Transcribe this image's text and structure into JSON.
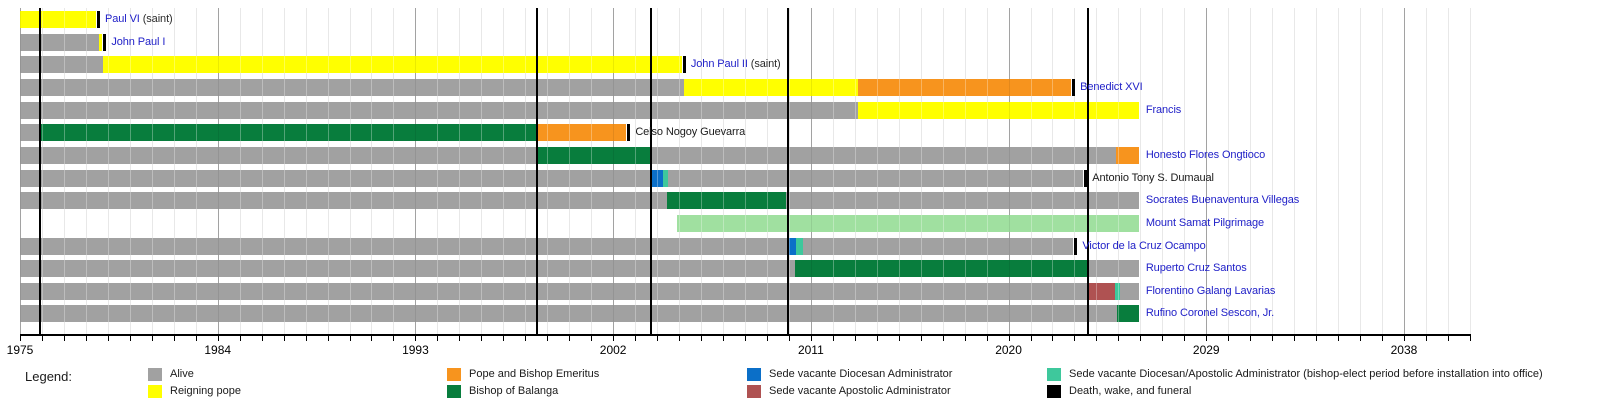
{
  "chart_data": {
    "type": "timeline",
    "x_axis": {
      "start_year": 1975,
      "end_year": 2041,
      "tick_interval_years": 1,
      "labeled_years": [
        1975,
        1984,
        1993,
        2002,
        2011,
        2020,
        2029,
        2038
      ]
    },
    "statuses": {
      "alive": {
        "label": "Alive",
        "color": "#a1a1a1"
      },
      "reigning_pope": {
        "label": "Reigning pope",
        "color": "#ffff00"
      },
      "emeritus": {
        "label": "Pope and Bishop Emeritus",
        "color": "#f7941e"
      },
      "bishop_of_balanga": {
        "label": "Bishop of Balanga",
        "color": "#087d3d"
      },
      "sede_vacante_diocesan": {
        "label": "Sede vacante Diocesan Administrator",
        "color": "#0b6fc8"
      },
      "sede_vacante_apostolic": {
        "label": "Sede vacante Apostolic Administrator",
        "color": "#af5252"
      },
      "bishop_elect": {
        "label": "Sede vacante Diocesan/Apostolic Administrator (bishop-elect period before installation into office)",
        "color": "#3ec89c"
      },
      "death": {
        "label": "Death, wake, and funeral",
        "color": "#000000"
      },
      "pilgrimage": {
        "label": "Mount Samat Pilgrimage",
        "color": "#a0e0a0"
      }
    },
    "event_line_years": [
      1975.87,
      1998.5,
      2003.68,
      2009.92,
      2023.58
    ],
    "rows": [
      {
        "name": "Paul VI",
        "suffix": " (saint)",
        "link": true,
        "death_year": 1978.46,
        "segments": [
          {
            "status": "reigning_pope",
            "from": 1975,
            "to": 1978.46
          }
        ]
      },
      {
        "name": "John Paul I",
        "suffix": "",
        "link": true,
        "death_year": 1978.75,
        "segments": [
          {
            "status": "alive",
            "from": 1975,
            "to": 1978.6
          },
          {
            "status": "reigning_pope",
            "from": 1978.6,
            "to": 1978.75
          }
        ]
      },
      {
        "name": "John Paul II",
        "suffix": " (saint)",
        "link": true,
        "death_year": 2005.13,
        "segments": [
          {
            "status": "alive",
            "from": 1975,
            "to": 1978.78
          },
          {
            "status": "reigning_pope",
            "from": 1978.78,
            "to": 2005.13
          }
        ]
      },
      {
        "name": "Benedict XVI",
        "suffix": "",
        "link": true,
        "death_year": 2022.85,
        "segments": [
          {
            "status": "alive",
            "from": 1975,
            "to": 2005.22
          },
          {
            "status": "reigning_pope",
            "from": 2005.22,
            "to": 2013.14
          },
          {
            "status": "emeritus",
            "from": 2013.14,
            "to": 2022.85
          }
        ]
      },
      {
        "name": "Francis",
        "suffix": "",
        "link": true,
        "segments": [
          {
            "status": "alive",
            "from": 1975,
            "to": 2013.14
          },
          {
            "status": "reigning_pope",
            "from": 2013.14,
            "to": 2025.93
          }
        ]
      },
      {
        "name": "Celso Nogoy Guevarra",
        "suffix": "",
        "link": false,
        "death_year": 2002.6,
        "segments": [
          {
            "status": "alive",
            "from": 1975,
            "to": 1975.87
          },
          {
            "status": "bishop_of_balanga",
            "from": 1975.87,
            "to": 1998.5
          },
          {
            "status": "emeritus",
            "from": 1998.5,
            "to": 2002.6
          }
        ]
      },
      {
        "name": "Honesto Flores Ongtioco",
        "suffix": "",
        "link": true,
        "segments": [
          {
            "status": "alive",
            "from": 1975,
            "to": 1998.5
          },
          {
            "status": "bishop_of_balanga",
            "from": 1998.5,
            "to": 2003.68
          },
          {
            "status": "alive",
            "from": 2003.68,
            "to": 2024.89
          },
          {
            "status": "emeritus",
            "from": 2024.89,
            "to": 2025.93
          }
        ]
      },
      {
        "name": "Antonio Tony S. Dumaual",
        "suffix": "",
        "link": false,
        "death_year": 2023.4,
        "segments": [
          {
            "status": "alive",
            "from": 1975,
            "to": 2003.72
          },
          {
            "status": "sede_vacante_diocesan",
            "from": 2003.72,
            "to": 2004.27
          },
          {
            "status": "bishop_elect",
            "from": 2004.27,
            "to": 2004.5
          },
          {
            "status": "alive",
            "from": 2004.5,
            "to": 2023.4
          }
        ]
      },
      {
        "name": "Socrates Buenaventura Villegas",
        "suffix": "",
        "link": true,
        "segments": [
          {
            "status": "alive",
            "from": 1975,
            "to": 2004.45
          },
          {
            "status": "bishop_of_balanga",
            "from": 2004.45,
            "to": 2009.87
          },
          {
            "status": "alive",
            "from": 2009.87,
            "to": 2025.93
          }
        ]
      },
      {
        "name": "Mount Samat Pilgrimage",
        "suffix": "",
        "link": true,
        "segments": [
          {
            "status": "pilgrimage",
            "from": 2004.9,
            "to": 2025.93
          }
        ]
      },
      {
        "name": "Victor de la Cruz Ocampo",
        "suffix": "",
        "link": true,
        "death_year": 2022.95,
        "segments": [
          {
            "status": "alive",
            "from": 1975,
            "to": 2009.96
          },
          {
            "status": "sede_vacante_diocesan",
            "from": 2009.96,
            "to": 2010.32
          },
          {
            "status": "bishop_elect",
            "from": 2010.32,
            "to": 2010.64
          },
          {
            "status": "alive",
            "from": 2010.64,
            "to": 2022.95
          }
        ]
      },
      {
        "name": "Ruperto Cruz Santos",
        "suffix": "",
        "link": true,
        "segments": [
          {
            "status": "alive",
            "from": 1975,
            "to": 2010.28
          },
          {
            "status": "bishop_of_balanga",
            "from": 2010.28,
            "to": 2023.57
          },
          {
            "status": "alive",
            "from": 2023.57,
            "to": 2025.93
          }
        ]
      },
      {
        "name": "Florentino Galang Lavarias",
        "suffix": "",
        "link": true,
        "segments": [
          {
            "status": "alive",
            "from": 1975,
            "to": 2023.62
          },
          {
            "status": "sede_vacante_apostolic",
            "from": 2023.62,
            "to": 2024.85
          },
          {
            "status": "bishop_elect",
            "from": 2024.85,
            "to": 2025.07
          },
          {
            "status": "alive",
            "from": 2025.07,
            "to": 2025.93
          }
        ]
      },
      {
        "name": "Rufino Coronel Sescon, Jr.",
        "suffix": "",
        "link": true,
        "segments": [
          {
            "status": "alive",
            "from": 1975,
            "to": 2024.93
          },
          {
            "status": "bishop_of_balanga",
            "from": 2024.93,
            "to": 2025.93
          }
        ]
      }
    ],
    "legend": {
      "title": "Legend:",
      "items": [
        "alive",
        "reigning_pope",
        "emeritus",
        "bishop_of_balanga",
        "sede_vacante_diocesan",
        "sede_vacante_apostolic",
        "bishop_elect",
        "death"
      ]
    },
    "link_color": "#2121c8",
    "plain_label_color": "#1a1a1a"
  }
}
